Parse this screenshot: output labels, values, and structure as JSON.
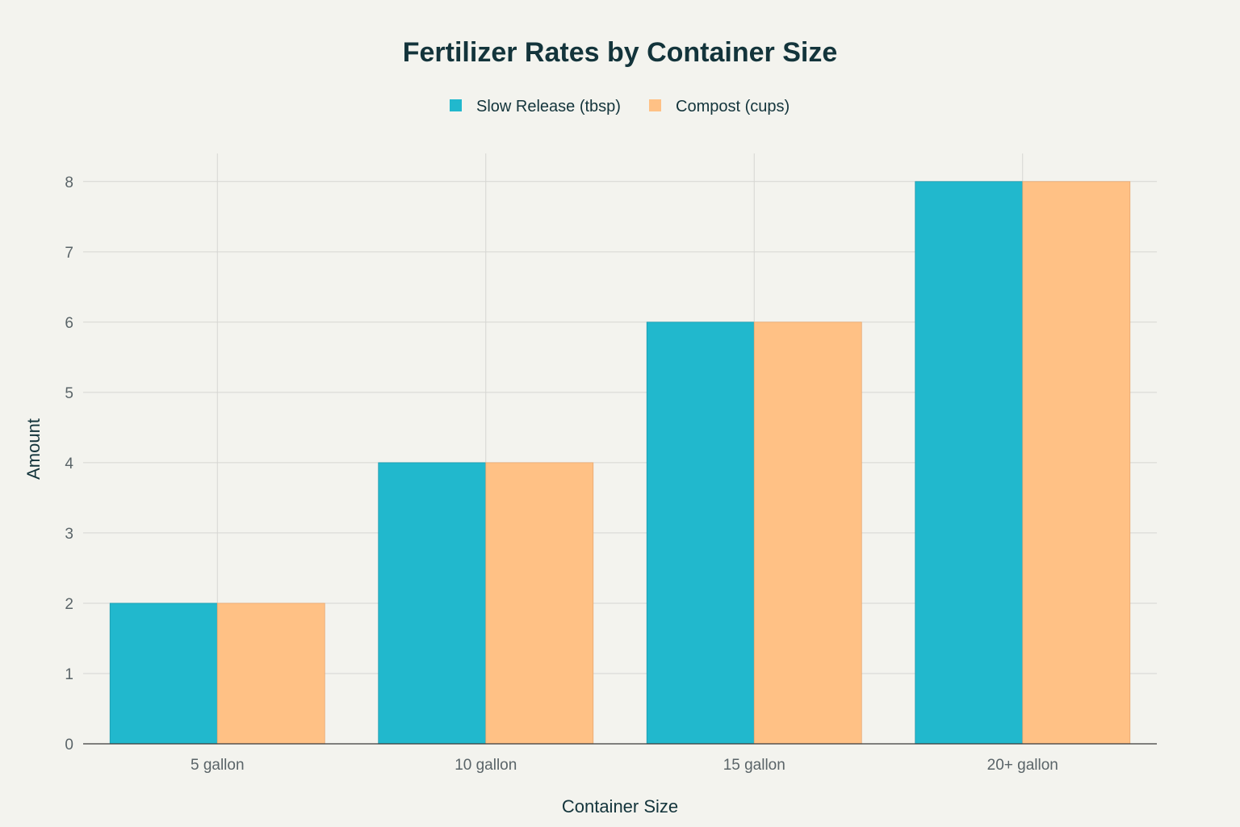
{
  "chart_data": {
    "type": "bar",
    "title": "Fertilizer Rates by Container Size",
    "xlabel": "Container Size",
    "ylabel": "Amount",
    "categories": [
      "5 gallon",
      "10 gallon",
      "15 gallon",
      "20+ gallon"
    ],
    "series": [
      {
        "name": "Slow Release (tbsp)",
        "values": [
          2,
          4,
          6,
          8
        ],
        "color": "#21b8cd"
      },
      {
        "name": "Compost (cups)",
        "values": [
          2,
          4,
          6,
          8
        ],
        "color": "#ffc185"
      }
    ],
    "ylim": [
      0,
      8.4
    ],
    "yticks": [
      0,
      1,
      2,
      3,
      4,
      5,
      6,
      7,
      8
    ],
    "grid": true,
    "legend": "top-center"
  }
}
